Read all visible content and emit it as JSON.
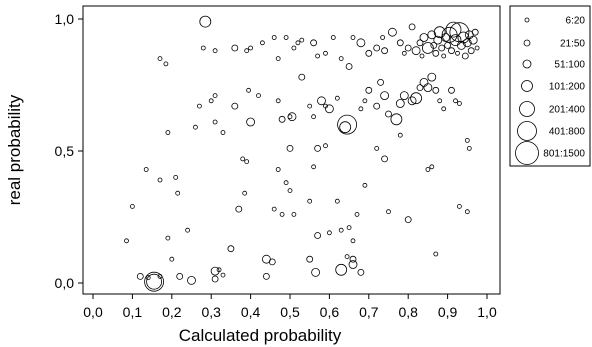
{
  "chart_data": {
    "type": "scatter",
    "xlabel": "Calculated probability",
    "ylabel": "real probability",
    "xlim": [
      0,
      1
    ],
    "ylim": [
      0,
      1
    ],
    "x_ticks": [
      "0,0",
      "0,1",
      "0,2",
      "0,3",
      "0,4",
      "0,5",
      "0,6",
      "0,7",
      "0,8",
      "0,9",
      "1,0"
    ],
    "y_ticks": [
      "0,0",
      "0,5",
      "1,0"
    ],
    "grid": false,
    "legend_position": "right",
    "legend": [
      {
        "label": "6:20",
        "size_class": 0
      },
      {
        "label": "21:50",
        "size_class": 1
      },
      {
        "label": "51:100",
        "size_class": 2
      },
      {
        "label": "101:200",
        "size_class": 3
      },
      {
        "label": "201:400",
        "size_class": 4
      },
      {
        "label": "401:800",
        "size_class": 5
      },
      {
        "label": "801:1500",
        "size_class": 6
      }
    ],
    "points": [
      {
        "x": 0.285,
        "y": 0.99,
        "s": 3
      },
      {
        "x": 0.17,
        "y": 0.85,
        "s": 0
      },
      {
        "x": 0.185,
        "y": 0.83,
        "s": 0
      },
      {
        "x": 0.28,
        "y": 0.89,
        "s": 0
      },
      {
        "x": 0.31,
        "y": 0.88,
        "s": 0
      },
      {
        "x": 0.36,
        "y": 0.89,
        "s": 1
      },
      {
        "x": 0.39,
        "y": 0.88,
        "s": 0
      },
      {
        "x": 0.4,
        "y": 0.89,
        "s": 0
      },
      {
        "x": 0.43,
        "y": 0.91,
        "s": 0
      },
      {
        "x": 0.46,
        "y": 0.93,
        "s": 0
      },
      {
        "x": 0.47,
        "y": 0.85,
        "s": 0
      },
      {
        "x": 0.49,
        "y": 0.93,
        "s": 0
      },
      {
        "x": 0.51,
        "y": 0.89,
        "s": 0
      },
      {
        "x": 0.52,
        "y": 0.91,
        "s": 0
      },
      {
        "x": 0.53,
        "y": 0.92,
        "s": 0
      },
      {
        "x": 0.56,
        "y": 0.91,
        "s": 1
      },
      {
        "x": 0.57,
        "y": 0.86,
        "s": 0
      },
      {
        "x": 0.59,
        "y": 0.87,
        "s": 0
      },
      {
        "x": 0.61,
        "y": 0.93,
        "s": 0
      },
      {
        "x": 0.63,
        "y": 0.85,
        "s": 0
      },
      {
        "x": 0.65,
        "y": 0.82,
        "s": 1
      },
      {
        "x": 0.66,
        "y": 0.93,
        "s": 0
      },
      {
        "x": 0.68,
        "y": 0.91,
        "s": 2
      },
      {
        "x": 0.7,
        "y": 0.87,
        "s": 1
      },
      {
        "x": 0.72,
        "y": 0.89,
        "s": 1
      },
      {
        "x": 0.735,
        "y": 0.93,
        "s": 0
      },
      {
        "x": 0.74,
        "y": 0.88,
        "s": 1
      },
      {
        "x": 0.76,
        "y": 0.95,
        "s": 2
      },
      {
        "x": 0.78,
        "y": 0.91,
        "s": 1
      },
      {
        "x": 0.79,
        "y": 0.87,
        "s": 0
      },
      {
        "x": 0.8,
        "y": 0.89,
        "s": 1
      },
      {
        "x": 0.81,
        "y": 0.97,
        "s": 1
      },
      {
        "x": 0.82,
        "y": 0.88,
        "s": 2
      },
      {
        "x": 0.83,
        "y": 0.91,
        "s": 1
      },
      {
        "x": 0.835,
        "y": 0.86,
        "s": 0
      },
      {
        "x": 0.84,
        "y": 0.93,
        "s": 2
      },
      {
        "x": 0.85,
        "y": 0.89,
        "s": 3
      },
      {
        "x": 0.86,
        "y": 0.94,
        "s": 2
      },
      {
        "x": 0.865,
        "y": 0.9,
        "s": 1
      },
      {
        "x": 0.87,
        "y": 0.87,
        "s": 1
      },
      {
        "x": 0.875,
        "y": 0.92,
        "s": 2
      },
      {
        "x": 0.88,
        "y": 0.95,
        "s": 3
      },
      {
        "x": 0.885,
        "y": 0.89,
        "s": 1
      },
      {
        "x": 0.89,
        "y": 0.86,
        "s": 0
      },
      {
        "x": 0.895,
        "y": 0.93,
        "s": 2
      },
      {
        "x": 0.9,
        "y": 0.9,
        "s": 1
      },
      {
        "x": 0.905,
        "y": 0.94,
        "s": 4
      },
      {
        "x": 0.91,
        "y": 0.88,
        "s": 1
      },
      {
        "x": 0.915,
        "y": 0.96,
        "s": 4
      },
      {
        "x": 0.92,
        "y": 0.92,
        "s": 3
      },
      {
        "x": 0.925,
        "y": 0.87,
        "s": 0
      },
      {
        "x": 0.93,
        "y": 0.95,
        "s": 5
      },
      {
        "x": 0.935,
        "y": 0.9,
        "s": 2
      },
      {
        "x": 0.94,
        "y": 0.93,
        "s": 3
      },
      {
        "x": 0.945,
        "y": 0.86,
        "s": 1
      },
      {
        "x": 0.95,
        "y": 0.91,
        "s": 2
      },
      {
        "x": 0.955,
        "y": 0.94,
        "s": 2
      },
      {
        "x": 0.96,
        "y": 0.88,
        "s": 1
      },
      {
        "x": 0.965,
        "y": 0.92,
        "s": 2
      },
      {
        "x": 0.97,
        "y": 0.95,
        "s": 1
      },
      {
        "x": 0.975,
        "y": 0.89,
        "s": 0
      },
      {
        "x": 0.26,
        "y": 0.59,
        "s": 0
      },
      {
        "x": 0.27,
        "y": 0.67,
        "s": 0
      },
      {
        "x": 0.3,
        "y": 0.69,
        "s": 0
      },
      {
        "x": 0.31,
        "y": 0.71,
        "s": 0
      },
      {
        "x": 0.31,
        "y": 0.61,
        "s": 0
      },
      {
        "x": 0.33,
        "y": 0.57,
        "s": 0
      },
      {
        "x": 0.36,
        "y": 0.67,
        "s": 1
      },
      {
        "x": 0.38,
        "y": 0.47,
        "s": 0
      },
      {
        "x": 0.385,
        "y": 0.34,
        "s": 0
      },
      {
        "x": 0.39,
        "y": 0.46,
        "s": 0
      },
      {
        "x": 0.395,
        "y": 0.73,
        "s": 0
      },
      {
        "x": 0.4,
        "y": 0.61,
        "s": 2
      },
      {
        "x": 0.42,
        "y": 0.71,
        "s": 0
      },
      {
        "x": 0.47,
        "y": 0.69,
        "s": 0
      },
      {
        "x": 0.48,
        "y": 0.62,
        "s": 1
      },
      {
        "x": 0.5,
        "y": 0.63,
        "s": 0
      },
      {
        "x": 0.505,
        "y": 0.63,
        "s": 2
      },
      {
        "x": 0.53,
        "y": 0.78,
        "s": 1
      },
      {
        "x": 0.55,
        "y": 0.67,
        "s": 0
      },
      {
        "x": 0.56,
        "y": 0.63,
        "s": 0
      },
      {
        "x": 0.58,
        "y": 0.69,
        "s": 2
      },
      {
        "x": 0.59,
        "y": 0.67,
        "s": 0
      },
      {
        "x": 0.6,
        "y": 0.66,
        "s": 2
      },
      {
        "x": 0.62,
        "y": 0.7,
        "s": 0
      },
      {
        "x": 0.645,
        "y": 0.6,
        "s": 5
      },
      {
        "x": 0.64,
        "y": 0.59,
        "s": 3
      },
      {
        "x": 0.68,
        "y": 0.66,
        "s": 0
      },
      {
        "x": 0.69,
        "y": 0.69,
        "s": 0
      },
      {
        "x": 0.7,
        "y": 0.73,
        "s": 1
      },
      {
        "x": 0.72,
        "y": 0.67,
        "s": 1
      },
      {
        "x": 0.73,
        "y": 0.76,
        "s": 1
      },
      {
        "x": 0.74,
        "y": 0.71,
        "s": 2
      },
      {
        "x": 0.75,
        "y": 0.64,
        "s": 1
      },
      {
        "x": 0.77,
        "y": 0.62,
        "s": 3
      },
      {
        "x": 0.78,
        "y": 0.68,
        "s": 2
      },
      {
        "x": 0.79,
        "y": 0.71,
        "s": 2
      },
      {
        "x": 0.81,
        "y": 0.69,
        "s": 2
      },
      {
        "x": 0.82,
        "y": 0.7,
        "s": 3
      },
      {
        "x": 0.83,
        "y": 0.74,
        "s": 1
      },
      {
        "x": 0.84,
        "y": 0.76,
        "s": 2
      },
      {
        "x": 0.85,
        "y": 0.74,
        "s": 2
      },
      {
        "x": 0.86,
        "y": 0.78,
        "s": 2
      },
      {
        "x": 0.87,
        "y": 0.73,
        "s": 1
      },
      {
        "x": 0.88,
        "y": 0.69,
        "s": 0
      },
      {
        "x": 0.89,
        "y": 0.66,
        "s": 0
      },
      {
        "x": 0.91,
        "y": 0.73,
        "s": 1
      },
      {
        "x": 0.92,
        "y": 0.69,
        "s": 0
      },
      {
        "x": 0.93,
        "y": 0.68,
        "s": 0
      },
      {
        "x": 0.95,
        "y": 0.54,
        "s": 0
      },
      {
        "x": 0.19,
        "y": 0.57,
        "s": 0
      },
      {
        "x": 0.21,
        "y": 0.4,
        "s": 0
      },
      {
        "x": 0.17,
        "y": 0.39,
        "s": 0
      },
      {
        "x": 0.135,
        "y": 0.43,
        "s": 0
      },
      {
        "x": 0.215,
        "y": 0.34,
        "s": 0
      },
      {
        "x": 0.19,
        "y": 0.17,
        "s": 0
      },
      {
        "x": 0.1,
        "y": 0.29,
        "s": 0
      },
      {
        "x": 0.085,
        "y": 0.16,
        "s": 0
      },
      {
        "x": 0.24,
        "y": 0.2,
        "s": 0
      },
      {
        "x": 0.46,
        "y": 0.28,
        "s": 0
      },
      {
        "x": 0.49,
        "y": 0.38,
        "s": 0
      },
      {
        "x": 0.5,
        "y": 0.35,
        "s": 0
      },
      {
        "x": 0.51,
        "y": 0.26,
        "s": 0
      },
      {
        "x": 0.48,
        "y": 0.26,
        "s": 0
      },
      {
        "x": 0.37,
        "y": 0.28,
        "s": 1
      },
      {
        "x": 0.47,
        "y": 0.43,
        "s": 0
      },
      {
        "x": 0.5,
        "y": 0.51,
        "s": 1
      },
      {
        "x": 0.57,
        "y": 0.51,
        "s": 1
      },
      {
        "x": 0.56,
        "y": 0.44,
        "s": 0
      },
      {
        "x": 0.59,
        "y": 0.52,
        "s": 0
      },
      {
        "x": 0.62,
        "y": 0.31,
        "s": 0
      },
      {
        "x": 0.55,
        "y": 0.31,
        "s": 0
      },
      {
        "x": 0.57,
        "y": 0.18,
        "s": 1
      },
      {
        "x": 0.6,
        "y": 0.19,
        "s": 0
      },
      {
        "x": 0.63,
        "y": 0.2,
        "s": 0
      },
      {
        "x": 0.65,
        "y": 0.21,
        "s": 0
      },
      {
        "x": 0.66,
        "y": 0.16,
        "s": 0
      },
      {
        "x": 0.67,
        "y": 0.26,
        "s": 0
      },
      {
        "x": 0.69,
        "y": 0.37,
        "s": 0
      },
      {
        "x": 0.72,
        "y": 0.51,
        "s": 0
      },
      {
        "x": 0.74,
        "y": 0.47,
        "s": 1
      },
      {
        "x": 0.75,
        "y": 0.27,
        "s": 0
      },
      {
        "x": 0.78,
        "y": 0.56,
        "s": 0
      },
      {
        "x": 0.8,
        "y": 0.24,
        "s": 1
      },
      {
        "x": 0.85,
        "y": 0.43,
        "s": 0
      },
      {
        "x": 0.86,
        "y": 0.44,
        "s": 0
      },
      {
        "x": 0.87,
        "y": 0.11,
        "s": 0
      },
      {
        "x": 0.93,
        "y": 0.29,
        "s": 0
      },
      {
        "x": 0.95,
        "y": 0.27,
        "s": 0
      },
      {
        "x": 0.955,
        "y": 0.51,
        "s": 0
      },
      {
        "x": 0.66,
        "y": 0.09,
        "s": 1
      },
      {
        "x": 0.155,
        "y": 0.005,
        "s": 5
      },
      {
        "x": 0.155,
        "y": 0.005,
        "s": 4
      },
      {
        "x": 0.12,
        "y": 0.025,
        "s": 1
      },
      {
        "x": 0.14,
        "y": 0.02,
        "s": 0
      },
      {
        "x": 0.17,
        "y": 0.025,
        "s": 0
      },
      {
        "x": 0.2,
        "y": 0.09,
        "s": 0
      },
      {
        "x": 0.22,
        "y": 0.025,
        "s": 1
      },
      {
        "x": 0.25,
        "y": 0.01,
        "s": 2
      },
      {
        "x": 0.31,
        "y": 0.045,
        "s": 2
      },
      {
        "x": 0.31,
        "y": 0.015,
        "s": 1
      },
      {
        "x": 0.32,
        "y": 0.05,
        "s": 0
      },
      {
        "x": 0.33,
        "y": 0.03,
        "s": 0
      },
      {
        "x": 0.35,
        "y": 0.13,
        "s": 1
      },
      {
        "x": 0.44,
        "y": 0.025,
        "s": 1
      },
      {
        "x": 0.44,
        "y": 0.09,
        "s": 2
      },
      {
        "x": 0.455,
        "y": 0.08,
        "s": 1
      },
      {
        "x": 0.55,
        "y": 0.09,
        "s": 1
      },
      {
        "x": 0.565,
        "y": 0.04,
        "s": 2
      },
      {
        "x": 0.63,
        "y": 0.05,
        "s": 3
      },
      {
        "x": 0.66,
        "y": 0.07,
        "s": 2
      },
      {
        "x": 0.68,
        "y": 0.04,
        "s": 1
      },
      {
        "x": 0.645,
        "y": 0.1,
        "s": 0
      }
    ]
  }
}
